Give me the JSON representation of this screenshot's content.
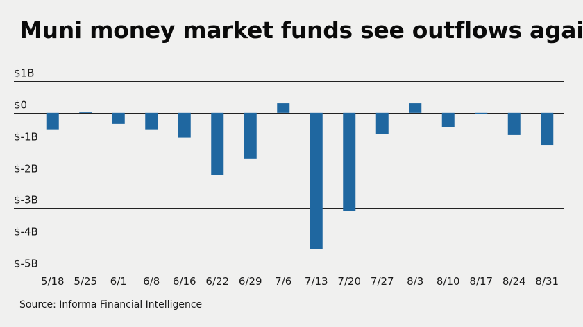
{
  "title": "Muni money market funds see outflows again",
  "source": "Source: Informa Financial Intelligence",
  "colors": {
    "bar": "#1f67a0",
    "background": "#f0f0ef",
    "gridline": "#222222",
    "text": "#1a1a1a"
  },
  "chart_data": {
    "type": "bar",
    "title": "Muni money market funds see outflows again",
    "xlabel": "",
    "ylabel": "",
    "categories": [
      "5/18",
      "5/25",
      "6/1",
      "6/8",
      "6/16",
      "6/22",
      "6/29",
      "7/6",
      "7/13",
      "7/20",
      "7/27",
      "8/3",
      "8/10",
      "8/17",
      "8/24",
      "8/31"
    ],
    "values": [
      -0.52,
      0.04,
      -0.35,
      -0.52,
      -0.78,
      -1.96,
      -1.44,
      0.3,
      -4.3,
      -3.1,
      -0.68,
      0.3,
      -0.45,
      -0.03,
      -0.7,
      -1.03
    ],
    "units": "billions of dollars",
    "ylim": [
      -5,
      1
    ],
    "yticks": [
      1,
      0,
      -1,
      -2,
      -3,
      -4,
      -5
    ],
    "ytick_labels": [
      "$1B",
      "$0",
      "$-1B",
      "$-2B",
      "$-3B",
      "$-4B",
      "$-5B"
    ],
    "grid": "horizontal",
    "legend": "none"
  }
}
